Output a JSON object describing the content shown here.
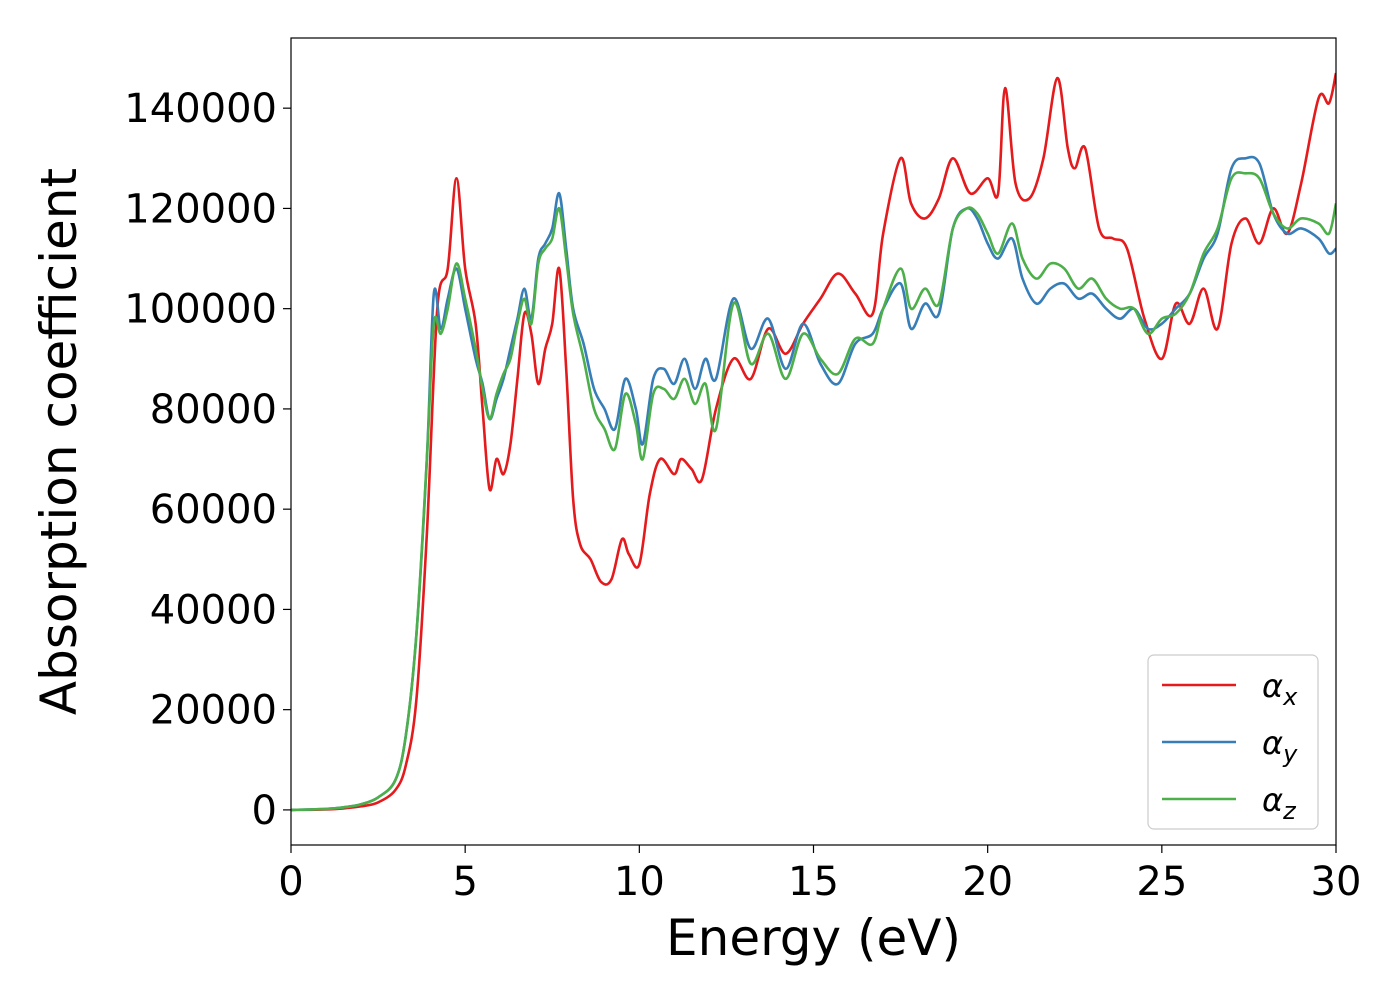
{
  "chart_data": {
    "type": "line",
    "title": "",
    "xlabel": "Energy (eV)",
    "ylabel": "Absorption coefficient",
    "xlim": [
      0,
      30
    ],
    "ylim": [
      -7000,
      154000
    ],
    "xticks": [
      0,
      5,
      10,
      15,
      20,
      25,
      30
    ],
    "yticks": [
      0,
      20000,
      40000,
      60000,
      80000,
      100000,
      120000,
      140000
    ],
    "grid": false,
    "legend_position": "lower right",
    "series": [
      {
        "name": "αx",
        "label_base": "α",
        "label_sub": "x",
        "color": "#e41a1c",
        "x": [
          0,
          1,
          1.5,
          2,
          2.5,
          3,
          3.3,
          3.6,
          3.9,
          4.2,
          4.5,
          4.75,
          5.0,
          5.3,
          5.5,
          5.7,
          5.9,
          6.1,
          6.3,
          6.5,
          6.7,
          6.9,
          7.1,
          7.3,
          7.5,
          7.7,
          7.9,
          8.1,
          8.3,
          8.6,
          8.9,
          9.2,
          9.5,
          9.7,
          10.0,
          10.3,
          10.6,
          11.0,
          11.2,
          11.5,
          11.8,
          12.2,
          12.7,
          13.2,
          13.7,
          14.2,
          14.7,
          15.2,
          15.7,
          16.2,
          16.7,
          17.0,
          17.5,
          17.8,
          18.2,
          18.6,
          19.0,
          19.5,
          20.0,
          20.3,
          20.5,
          20.8,
          21.2,
          21.6,
          22.0,
          22.3,
          22.5,
          22.8,
          23.2,
          23.6,
          24.0,
          24.5,
          25.0,
          25.4,
          25.8,
          26.2,
          26.6,
          27.0,
          27.4,
          27.8,
          28.2,
          28.6,
          29.0,
          29.5,
          29.8,
          30
        ],
        "y": [
          0,
          100,
          300,
          700,
          1500,
          4000,
          9000,
          22000,
          55000,
          100000,
          108000,
          126000,
          108000,
          97000,
          80000,
          64000,
          70000,
          67000,
          73000,
          86000,
          99000,
          95000,
          85000,
          92000,
          97000,
          108000,
          88000,
          62000,
          53000,
          50000,
          45500,
          46000,
          54000,
          51000,
          49000,
          63000,
          70000,
          67000,
          70000,
          68000,
          66000,
          80000,
          90000,
          86000,
          96000,
          91000,
          97000,
          102000,
          107000,
          103000,
          99000,
          115000,
          130000,
          121000,
          118000,
          122000,
          130000,
          123000,
          126000,
          123000,
          144000,
          125000,
          122000,
          130000,
          146000,
          132000,
          128000,
          132000,
          116000,
          114000,
          112000,
          98000,
          90000,
          101000,
          97000,
          104000,
          96000,
          113000,
          118000,
          113000,
          120000,
          115000,
          125000,
          142000,
          141000,
          147000
        ]
      },
      {
        "name": "αy",
        "label_base": "α",
        "label_sub": "y",
        "color": "#377eb8",
        "x": [
          0,
          1,
          1.5,
          2,
          2.5,
          3,
          3.3,
          3.6,
          3.9,
          4.1,
          4.3,
          4.5,
          4.75,
          5.0,
          5.3,
          5.5,
          5.7,
          5.9,
          6.1,
          6.3,
          6.5,
          6.7,
          6.9,
          7.1,
          7.3,
          7.5,
          7.7,
          7.9,
          8.1,
          8.4,
          8.7,
          9.0,
          9.3,
          9.6,
          9.9,
          10.1,
          10.4,
          10.7,
          11.0,
          11.3,
          11.6,
          11.9,
          12.2,
          12.7,
          13.2,
          13.7,
          14.2,
          14.7,
          15.2,
          15.7,
          16.2,
          16.7,
          17.0,
          17.5,
          17.8,
          18.2,
          18.6,
          19.0,
          19.4,
          19.7,
          20.0,
          20.3,
          20.7,
          21.0,
          21.4,
          21.8,
          22.2,
          22.6,
          23.0,
          23.4,
          23.8,
          24.2,
          24.6,
          25.0,
          25.4,
          25.8,
          26.2,
          26.6,
          27.0,
          27.4,
          27.8,
          28.2,
          28.6,
          29.0,
          29.5,
          29.8,
          30
        ],
        "y": [
          0,
          200,
          500,
          1100,
          2500,
          6000,
          15000,
          35000,
          70000,
          103000,
          96000,
          102000,
          108000,
          100000,
          90000,
          85000,
          78000,
          82000,
          86000,
          92000,
          98000,
          104000,
          98000,
          110000,
          113000,
          116000,
          123000,
          112000,
          100000,
          93000,
          84000,
          80000,
          76000,
          86000,
          80000,
          73000,
          86000,
          88000,
          85000,
          90000,
          84000,
          90000,
          86000,
          102000,
          92000,
          98000,
          88000,
          97000,
          89000,
          85000,
          93000,
          95000,
          100000,
          105000,
          96000,
          101000,
          99000,
          116000,
          120000,
          118000,
          113000,
          110000,
          114000,
          106000,
          101000,
          104000,
          105000,
          102000,
          103000,
          100000,
          98000,
          100000,
          96000,
          97000,
          100000,
          103000,
          110000,
          115000,
          128000,
          130000,
          129000,
          119000,
          115000,
          116000,
          114000,
          111000,
          112000
        ]
      },
      {
        "name": "αz",
        "label_base": "α",
        "label_sub": "z",
        "color": "#4daf4a",
        "x": [
          0,
          1,
          1.5,
          2,
          2.5,
          3,
          3.3,
          3.6,
          3.9,
          4.1,
          4.3,
          4.5,
          4.75,
          5.0,
          5.3,
          5.5,
          5.7,
          5.9,
          6.1,
          6.3,
          6.5,
          6.7,
          6.9,
          7.1,
          7.3,
          7.5,
          7.7,
          7.9,
          8.1,
          8.4,
          8.7,
          9.0,
          9.3,
          9.6,
          9.9,
          10.1,
          10.4,
          10.7,
          11.0,
          11.3,
          11.6,
          11.9,
          12.2,
          12.7,
          13.2,
          13.7,
          14.2,
          14.7,
          15.2,
          15.7,
          16.2,
          16.7,
          17.0,
          17.5,
          17.8,
          18.2,
          18.6,
          19.0,
          19.4,
          19.7,
          20.0,
          20.3,
          20.7,
          21.0,
          21.4,
          21.8,
          22.2,
          22.6,
          23.0,
          23.4,
          23.8,
          24.2,
          24.6,
          25.0,
          25.4,
          25.8,
          26.2,
          26.6,
          27.0,
          27.4,
          27.8,
          28.2,
          28.6,
          29.0,
          29.5,
          29.8,
          30
        ],
        "y": [
          0,
          200,
          500,
          1100,
          2500,
          6000,
          15000,
          35000,
          70000,
          97000,
          95000,
          100000,
          109000,
          102000,
          92000,
          84000,
          78000,
          83000,
          87000,
          90000,
          97000,
          102000,
          97000,
          109000,
          112000,
          114000,
          120000,
          110000,
          99000,
          90000,
          80000,
          76000,
          72000,
          83000,
          77000,
          70000,
          83000,
          84000,
          82000,
          86000,
          81000,
          85000,
          76000,
          101000,
          89000,
          95000,
          86000,
          95000,
          90000,
          87000,
          94000,
          93000,
          100000,
          108000,
          100000,
          104000,
          101000,
          116000,
          120000,
          119000,
          115000,
          111000,
          117000,
          110000,
          106000,
          109000,
          108000,
          104000,
          106000,
          102000,
          100000,
          100000,
          95000,
          98000,
          99000,
          103000,
          111000,
          116000,
          126000,
          127000,
          126000,
          119000,
          116000,
          118000,
          117000,
          115000,
          121000
        ]
      }
    ]
  }
}
